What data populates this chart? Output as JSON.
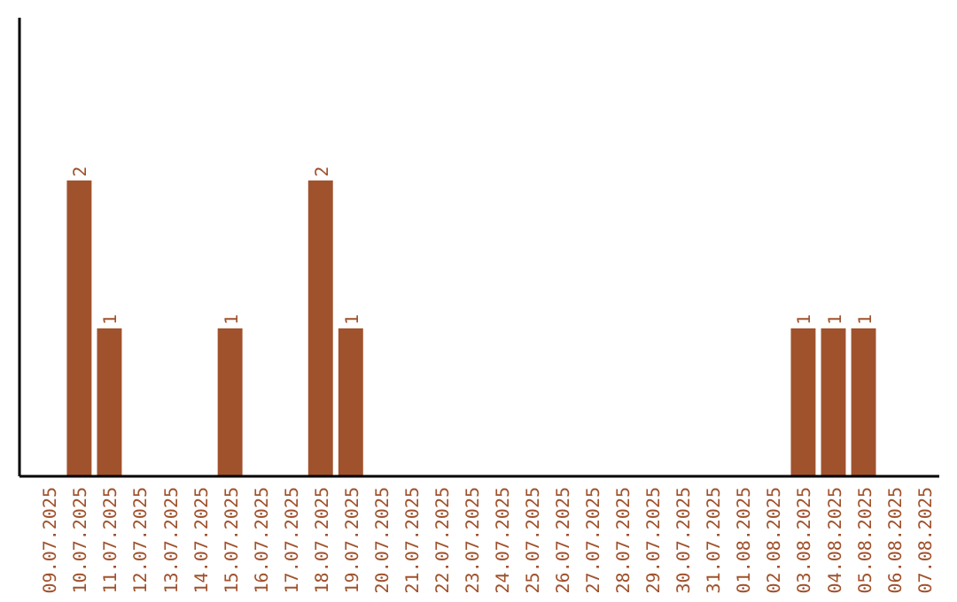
{
  "chart_data": {
    "type": "bar",
    "categories": [
      "09.07.2025",
      "10.07.2025",
      "11.07.2025",
      "12.07.2025",
      "13.07.2025",
      "14.07.2025",
      "15.07.2025",
      "16.07.2025",
      "17.07.2025",
      "18.07.2025",
      "19.07.2025",
      "20.07.2025",
      "21.07.2025",
      "22.07.2025",
      "23.07.2025",
      "24.07.2025",
      "25.07.2025",
      "26.07.2025",
      "27.07.2025",
      "28.07.2025",
      "29.07.2025",
      "30.07.2025",
      "31.07.2025",
      "01.08.2025",
      "02.08.2025",
      "03.08.2025",
      "04.08.2025",
      "05.08.2025",
      "06.08.2025",
      "07.08.2025"
    ],
    "values": [
      0,
      2,
      1,
      0,
      0,
      0,
      1,
      0,
      0,
      2,
      1,
      0,
      0,
      0,
      0,
      0,
      0,
      0,
      0,
      0,
      0,
      0,
      0,
      0,
      0,
      1,
      1,
      1,
      0,
      0
    ],
    "value_labels": [
      null,
      "2",
      "1",
      null,
      null,
      null,
      "1",
      null,
      null,
      "2",
      "1",
      null,
      null,
      null,
      null,
      null,
      null,
      null,
      null,
      null,
      null,
      null,
      null,
      null,
      null,
      "1",
      "1",
      "1",
      null,
      null
    ],
    "color": "#a0522d",
    "ylim": [
      0,
      3.1
    ],
    "tick_labels": "x",
    "grid": false
  }
}
